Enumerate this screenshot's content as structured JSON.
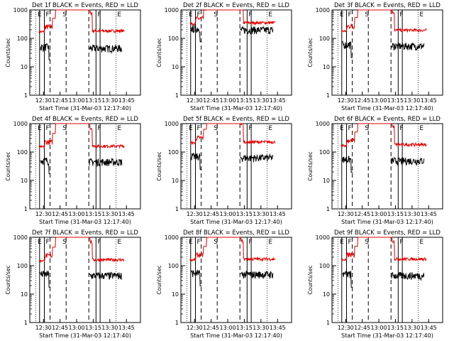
{
  "chart_data": [
    {
      "type": "line",
      "title": "Det 1f BLACK = Events, RED = LLD",
      "ylabel": "Counts/sec",
      "xlabel": "Start Time (31-Mar-03 12:17:40)",
      "xticks": [
        "12:30",
        "12:45",
        "13:00",
        "13:15",
        "13:30",
        "13:45"
      ],
      "yticks": [
        "1",
        "10",
        "100",
        "1000"
      ],
      "ylim": [
        1,
        1000
      ],
      "red_level": 170,
      "black_level": 50,
      "solid_lines": [
        "F",
        "F"
      ],
      "dashed_lines": [
        "S"
      ],
      "dotted_lines": [
        "E",
        "E"
      ]
    },
    {
      "type": "line",
      "title": "Det 2f BLACK = Events, RED = LLD",
      "ylabel": "Counts/sec",
      "xlabel": "Start Time (31-Mar-03 12:17:40)",
      "xticks": [
        "12:30",
        "12:45",
        "13:00",
        "13:15",
        "13:30",
        "13:45"
      ],
      "yticks": [
        "1",
        "10",
        "100",
        "1000"
      ],
      "ylim": [
        1,
        1000
      ],
      "red_level": 330,
      "black_level": 220,
      "solid_lines": [
        "F",
        "F"
      ],
      "dashed_lines": [
        "S"
      ],
      "dotted_lines": [
        "E",
        "E"
      ]
    },
    {
      "type": "line",
      "title": "Det 3f BLACK = Events, RED = LLD",
      "ylabel": "Counts/sec",
      "xlabel": "Start Time (31-Mar-03 12:17:40)",
      "xticks": [
        "12:30",
        "12:45",
        "13:00",
        "13:15",
        "13:30",
        "13:45"
      ],
      "yticks": [
        "1",
        "10",
        "100",
        "1000"
      ],
      "ylim": [
        1,
        1000
      ],
      "red_level": 180,
      "black_level": 60,
      "solid_lines": [
        "F",
        "F"
      ],
      "dashed_lines": [
        "S"
      ],
      "dotted_lines": [
        "E",
        "E"
      ]
    },
    {
      "type": "line",
      "title": "Det 4f BLACK = Events, RED = LLD",
      "ylabel": "Counts/sec",
      "xlabel": "Start Time (31-Mar-03 12:17:40)",
      "xticks": [
        "12:30",
        "12:45",
        "13:00",
        "13:15",
        "13:30",
        "13:45"
      ],
      "yticks": [
        "1",
        "10",
        "100",
        "1000"
      ],
      "ylim": [
        1,
        1000
      ],
      "red_level": 150,
      "black_level": 50,
      "solid_lines": [
        "F",
        "F"
      ],
      "dashed_lines": [
        "S"
      ],
      "dotted_lines": [
        "E",
        "E"
      ]
    },
    {
      "type": "line",
      "title": "Det 5f BLACK = Events, RED = LLD",
      "ylabel": "Counts/sec",
      "xlabel": "Start Time (31-Mar-03 12:17:40)",
      "xticks": [
        "12:30",
        "12:45",
        "13:00",
        "13:15",
        "13:30",
        "13:45"
      ],
      "yticks": [
        "1",
        "10",
        "100",
        "1000"
      ],
      "ylim": [
        1,
        1000
      ],
      "red_level": 210,
      "black_level": 70,
      "solid_lines": [
        "F",
        "F"
      ],
      "dashed_lines": [
        "S"
      ],
      "dotted_lines": [
        "E",
        "E"
      ]
    },
    {
      "type": "line",
      "title": "Det 6f BLACK = Events, RED = LLD",
      "ylabel": "Counts/sec",
      "xlabel": "Start Time (31-Mar-03 12:17:40)",
      "xticks": [
        "12:30",
        "12:45",
        "13:00",
        "13:15",
        "13:30",
        "13:45"
      ],
      "yticks": [
        "1",
        "10",
        "100",
        "1000"
      ],
      "ylim": [
        1,
        1000
      ],
      "red_level": 170,
      "black_level": 55,
      "solid_lines": [
        "F",
        "F"
      ],
      "dashed_lines": [
        "S"
      ],
      "dotted_lines": [
        "E",
        "E"
      ]
    },
    {
      "type": "line",
      "title": "Det 7f BLACK = Events, RED = LLD",
      "ylabel": "Counts/sec",
      "xlabel": "Start Time (31-Mar-03 12:17:40)",
      "xticks": [
        "12:30",
        "12:45",
        "13:00",
        "13:15",
        "13:30",
        "13:45"
      ],
      "yticks": [
        "1",
        "10",
        "100",
        "1000"
      ],
      "ylim": [
        1,
        1000
      ],
      "red_level": 150,
      "black_level": 50,
      "solid_lines": [
        "F",
        "F"
      ],
      "dashed_lines": [
        "S"
      ],
      "dotted_lines": [
        "E",
        "E"
      ]
    },
    {
      "type": "line",
      "title": "Det 8f BLACK = Events, RED = LLD",
      "ylabel": "Counts/sec",
      "xlabel": "Start Time (31-Mar-03 12:17:40)",
      "xticks": [
        "12:30",
        "12:45",
        "13:00",
        "13:15",
        "13:30",
        "13:45"
      ],
      "yticks": [
        "1",
        "10",
        "100",
        "1000"
      ],
      "ylim": [
        1,
        1000
      ],
      "red_level": 160,
      "black_level": 55,
      "solid_lines": [
        "F",
        "F"
      ],
      "dashed_lines": [
        "S"
      ],
      "dotted_lines": [
        "E",
        "E"
      ]
    },
    {
      "type": "line",
      "title": "Det 9f BLACK = Events, RED = LLD",
      "ylabel": "Counts/sec",
      "xlabel": "Start Time (31-Mar-03 12:17:40)",
      "xticks": [
        "12:30",
        "12:45",
        "13:00",
        "13:15",
        "13:30",
        "13:45"
      ],
      "yticks": [
        "1",
        "10",
        "100",
        "1000"
      ],
      "ylim": [
        1,
        1000
      ],
      "red_level": 160,
      "black_level": 50,
      "solid_lines": [
        "F",
        "F"
      ],
      "dashed_lines": [
        "S"
      ],
      "dotted_lines": [
        "E",
        "E"
      ]
    }
  ],
  "colors": {
    "events": "#000000",
    "lld": "#e00000",
    "axis": "#000000"
  }
}
